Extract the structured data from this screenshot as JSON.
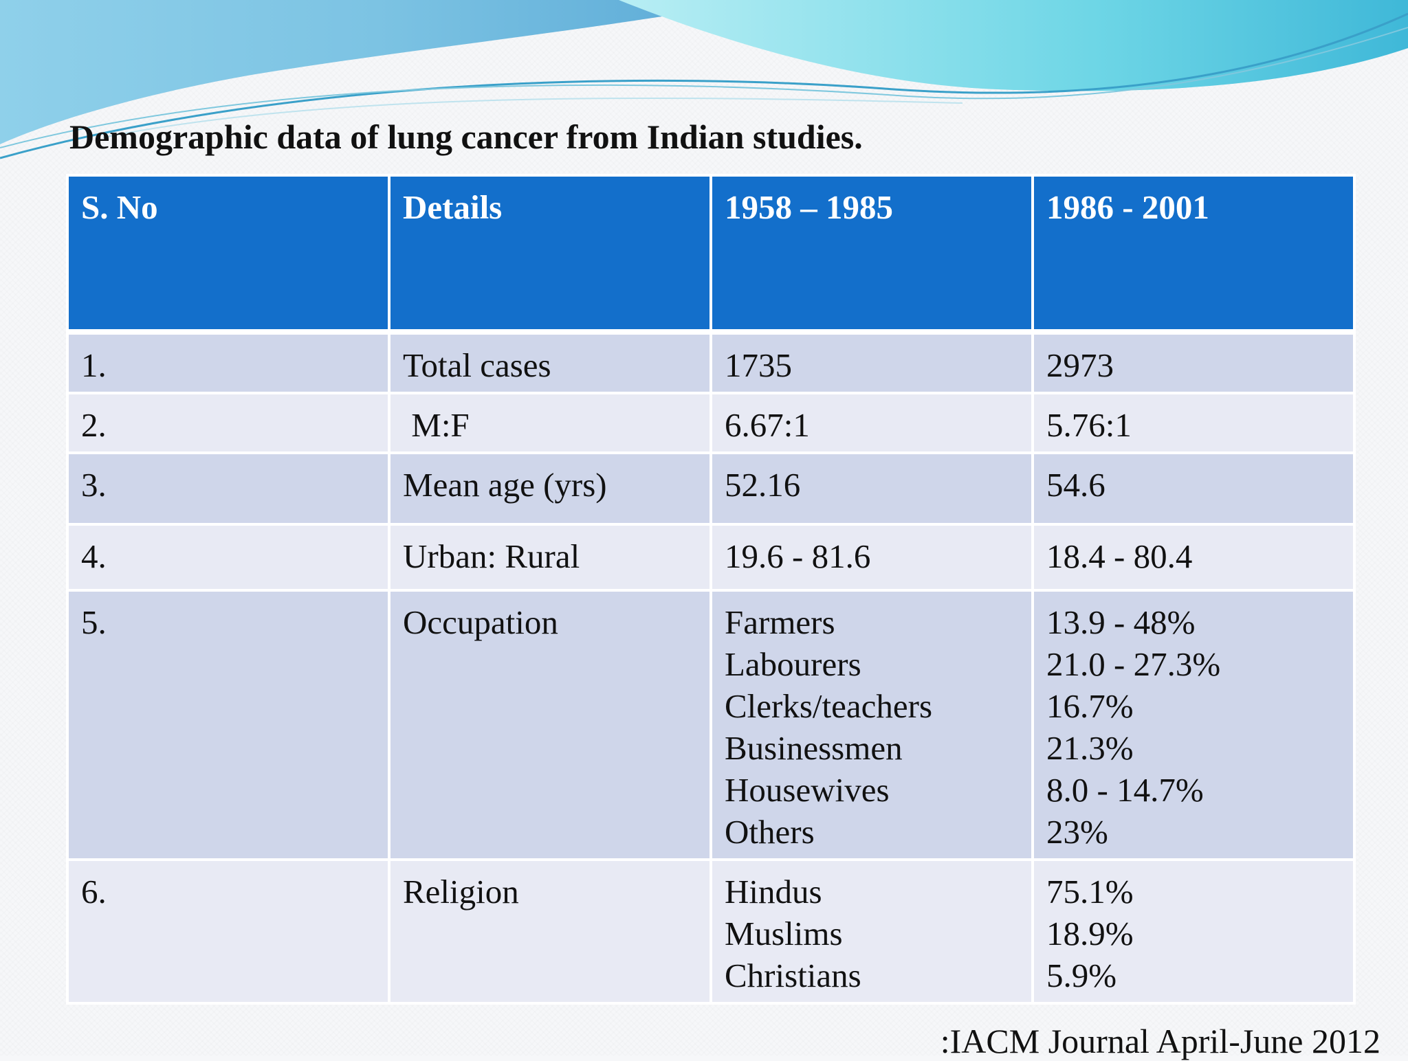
{
  "slide": {
    "title": "Demographic data of lung cancer from Indian studies.",
    "source": ":IACM Journal April-June 2012"
  },
  "table": {
    "headers": [
      "S. No",
      "Details",
      "1958 – 1985",
      "1986 - 2001"
    ],
    "rows": [
      {
        "sno": "1.",
        "detail": "Total cases",
        "col1": [
          "1735"
        ],
        "col2": [
          "2973"
        ]
      },
      {
        "sno": "2.",
        "detail": " M:F",
        "col1": [
          "6.67:1"
        ],
        "col2": [
          "5.76:1"
        ]
      },
      {
        "sno": "3.",
        "detail": "Mean age (yrs)",
        "col1": [
          "52.16"
        ],
        "col2": [
          "54.6"
        ]
      },
      {
        "sno": "4.",
        "detail": "Urban: Rural",
        "col1": [
          "19.6 - 81.6"
        ],
        "col2": [
          "18.4 - 80.4"
        ]
      },
      {
        "sno": "5.",
        "detail": "Occupation",
        "col1": [
          "Farmers",
          "Labourers",
          "Clerks/teachers",
          "Businessmen",
          "Housewives",
          "Others"
        ],
        "col2": [
          "13.9 - 48%",
          "21.0 - 27.3%",
          "16.7%",
          "21.3%",
          "8.0 - 14.7%",
          "23%"
        ]
      },
      {
        "sno": "6.",
        "detail": "Religion",
        "col1": [
          "Hindus",
          "Muslims",
          "Christians"
        ],
        "col2": [
          "75.1%",
          "18.9%",
          "5.9%"
        ]
      }
    ]
  },
  "colors": {
    "header_bg": "#136fcb",
    "row_dark": "#cfd6ea",
    "row_light": "#e8eaf4",
    "swoosh_blue": "#5fb0d8",
    "swoosh_teal": "#5fd3e0"
  }
}
